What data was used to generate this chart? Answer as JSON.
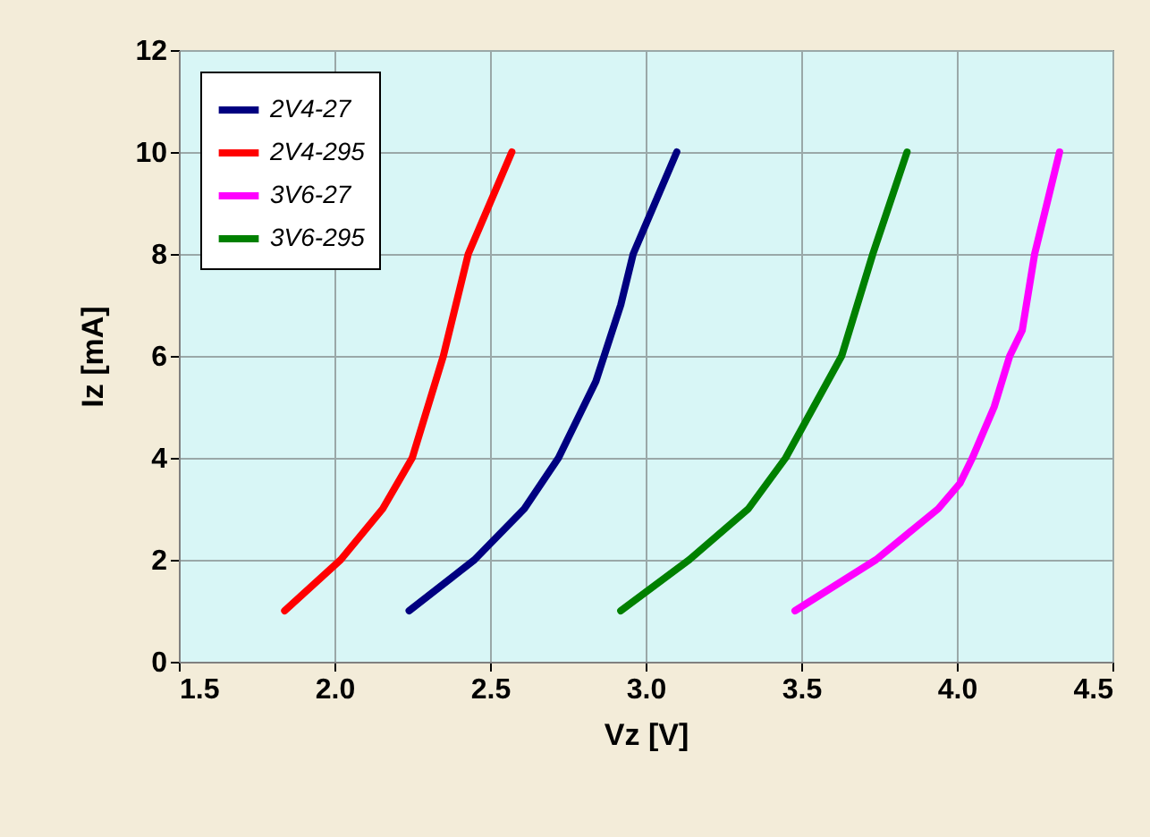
{
  "chart_data": {
    "type": "line",
    "xlabel": "Vz [V]",
    "ylabel": "Iz [mA]",
    "xlim": [
      1.5,
      4.5
    ],
    "xticks": [
      1.5,
      {
        "value": 2,
        "label": "2.0"
      },
      2.5,
      {
        "value": 3,
        "label": "3.0"
      },
      3.5,
      {
        "value": 4,
        "label": "4.0"
      },
      4.5
    ],
    "ylim": [
      0,
      12
    ],
    "yticks": [
      0,
      2,
      4,
      6,
      8,
      10,
      12
    ],
    "grid": true,
    "legend": "top left",
    "marker": "none",
    "line_style": "solid",
    "series": [
      {
        "name": "2V4-27",
        "color": "#000080",
        "x": [
          2.24,
          2.45,
          2.61,
          2.72,
          2.84,
          2.92,
          2.96,
          3.1
        ],
        "values": [
          1,
          2,
          3,
          4,
          5.5,
          7,
          8,
          10
        ]
      },
      {
        "name": "2V4-295",
        "color": "#ff0000",
        "x": [
          1.84,
          2.02,
          2.155,
          2.25,
          2.35,
          2.43,
          2.57
        ],
        "values": [
          1,
          2,
          3,
          4,
          6,
          8,
          10
        ]
      },
      {
        "name": "3V6-27",
        "color": "#ff00ff",
        "x": [
          3.48,
          3.74,
          3.94,
          4.01,
          4.05,
          4.12,
          4.17,
          4.21,
          4.25,
          4.33
        ],
        "values": [
          1,
          2,
          3,
          3.5,
          4,
          5,
          6,
          6.5,
          8,
          10
        ]
      },
      {
        "name": "3V6-295",
        "color": "#008000",
        "x": [
          2.92,
          3.14,
          3.33,
          3.45,
          3.63,
          3.73,
          3.84
        ],
        "values": [
          1,
          2,
          3,
          4,
          6,
          8,
          10
        ]
      }
    ]
  }
}
